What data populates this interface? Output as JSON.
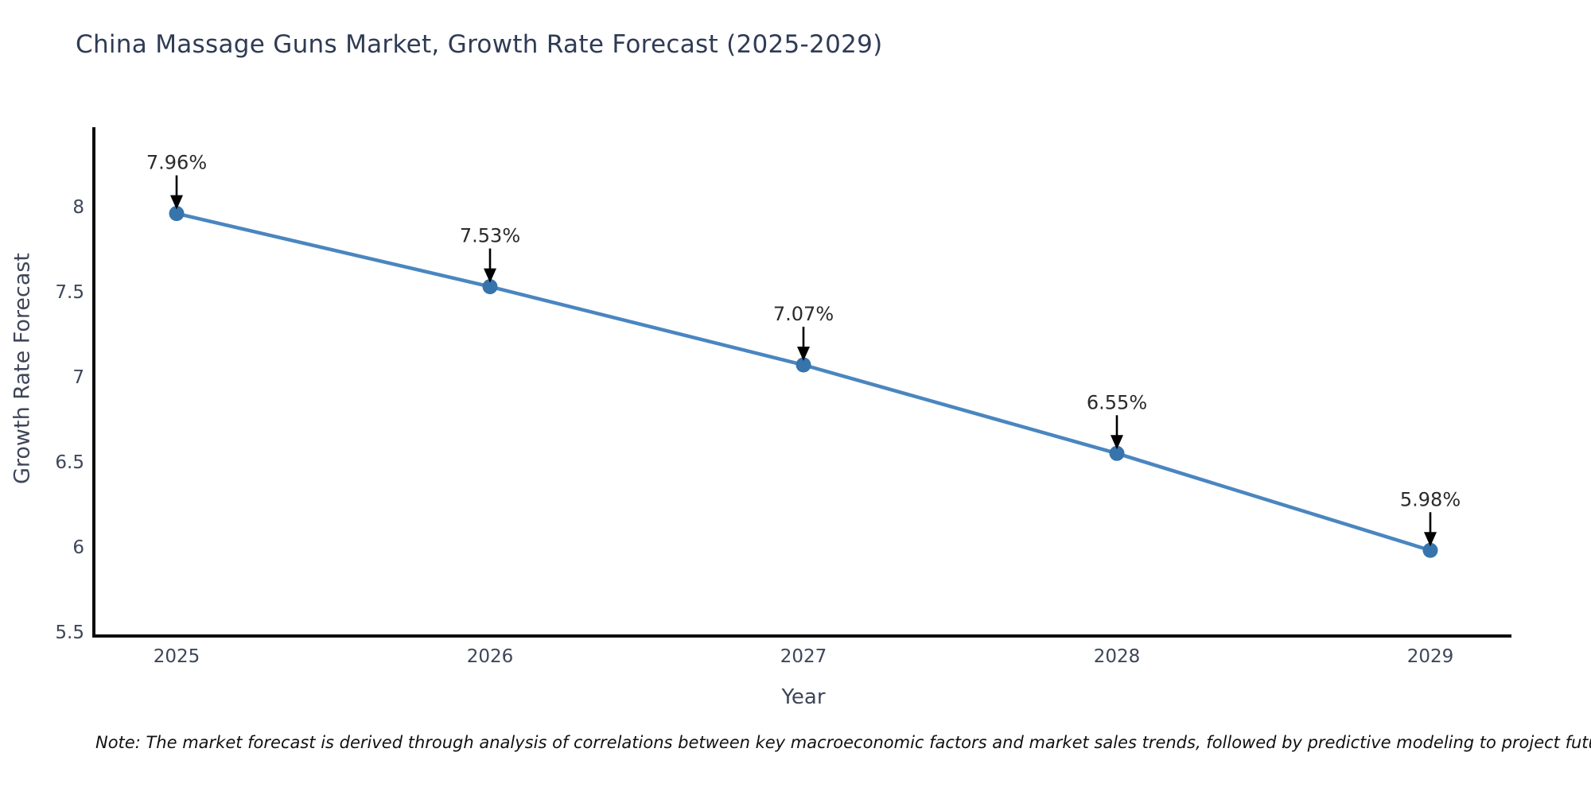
{
  "title": "China Massage Guns Market, Growth Rate Forecast (2025-2029)",
  "note": "Note: The market forecast is derived through analysis of correlations between key macroeconomic factors and market sales trends, followed by predictive modeling to project future sales",
  "chart_data": {
    "type": "line",
    "title": "China Massage Guns Market, Growth Rate Forecast (2025-2029)",
    "xlabel": "Year",
    "ylabel": "Growth Rate Forecast",
    "x": [
      2025,
      2026,
      2027,
      2028,
      2029
    ],
    "values": [
      7.96,
      7.53,
      7.07,
      6.55,
      5.98
    ],
    "point_labels": [
      "7.96%",
      "7.53%",
      "7.07%",
      "6.55%",
      "5.98%"
    ],
    "yticks": [
      5.5,
      6,
      6.5,
      7,
      7.5,
      8
    ],
    "ylim": [
      5.477,
      8.49
    ],
    "grid": false,
    "legend": "none",
    "annotation_style": "value labels with black down arrows above each point",
    "colors": {
      "line": "#4a86c0",
      "marker": "#3674ab",
      "axis": "#0d0d0d",
      "arrow": "#000000",
      "annotation_text": "#2a2a2a",
      "tick_text": "#3d4659",
      "title_text": "#2f3b55"
    }
  }
}
